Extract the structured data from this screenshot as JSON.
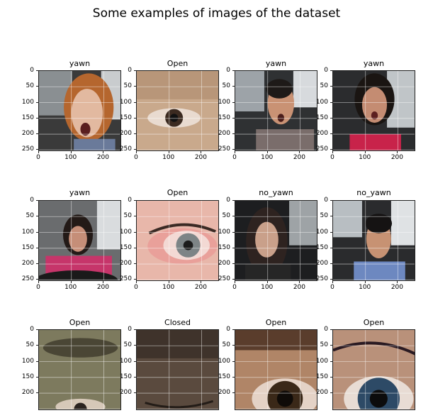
{
  "figure_title": "Some examples of images of the dataset",
  "chart_data": {
    "type": "image_grid",
    "title": "Some examples of images of the dataset",
    "rows": 3,
    "cols": 4,
    "subplots": [
      {
        "title": "yawn",
        "kind": "face",
        "scene": "woman-blonde-glasses",
        "yticks": [
          "0",
          "50",
          "100",
          "150",
          "200",
          "250"
        ],
        "xticks": [
          "0",
          "100",
          "200"
        ]
      },
      {
        "title": "Open",
        "kind": "eye",
        "scene": "eye-skin",
        "yticks": [
          "0",
          "50",
          "100",
          "150",
          "200",
          "250"
        ],
        "xticks": [
          "0",
          "100",
          "200"
        ]
      },
      {
        "title": "yawn",
        "kind": "face",
        "scene": "man-glasses-striped",
        "yticks": [
          "0",
          "50",
          "100",
          "150",
          "200",
          "250"
        ],
        "xticks": [
          "0",
          "100",
          "200"
        ]
      },
      {
        "title": "yawn",
        "kind": "face",
        "scene": "woman-red-top",
        "yticks": [
          "0",
          "50",
          "100",
          "150",
          "200",
          "250"
        ],
        "xticks": [
          "0",
          "100",
          "200"
        ]
      },
      {
        "title": "yawn",
        "kind": "face",
        "scene": "woman-pink-steering",
        "yticks": [
          "0",
          "50",
          "100",
          "150",
          "200",
          "250"
        ],
        "xticks": [
          "0",
          "100",
          "200"
        ]
      },
      {
        "title": "Open",
        "kind": "eye",
        "scene": "eye-red-lashes",
        "yticks": [
          "0",
          "50",
          "100",
          "150",
          "200",
          "250"
        ],
        "xticks": [
          "0",
          "100",
          "200"
        ]
      },
      {
        "title": "no_yawn",
        "kind": "face",
        "scene": "woman-dark-hair",
        "yticks": [
          "0",
          "50",
          "100",
          "150",
          "200",
          "250"
        ],
        "xticks": [
          "0",
          "100",
          "200"
        ]
      },
      {
        "title": "no_yawn",
        "kind": "face",
        "scene": "man-glasses-plaid",
        "yticks": [
          "0",
          "50",
          "100",
          "150",
          "200",
          "250"
        ],
        "xticks": [
          "0",
          "100",
          "200"
        ]
      },
      {
        "title": "Open",
        "kind": "eye",
        "scene": "eye-brow-green",
        "yticks": [
          "0",
          "50",
          "100",
          "150",
          "200"
        ],
        "xticks": []
      },
      {
        "title": "Closed",
        "kind": "eye",
        "scene": "eye-closed-dark",
        "yticks": [
          "0",
          "50",
          "100",
          "150",
          "200"
        ],
        "xticks": []
      },
      {
        "title": "Open",
        "kind": "eye",
        "scene": "eye-brown-close",
        "yticks": [
          "0",
          "50",
          "100",
          "150",
          "200"
        ],
        "xticks": []
      },
      {
        "title": "Open",
        "kind": "eye",
        "scene": "eye-blue-lashes",
        "yticks": [
          "0",
          "50",
          "100",
          "150",
          "200"
        ],
        "xticks": []
      }
    ],
    "xlim": [
      0,
      256
    ],
    "ylim": [
      256,
      0
    ],
    "grid": true
  }
}
